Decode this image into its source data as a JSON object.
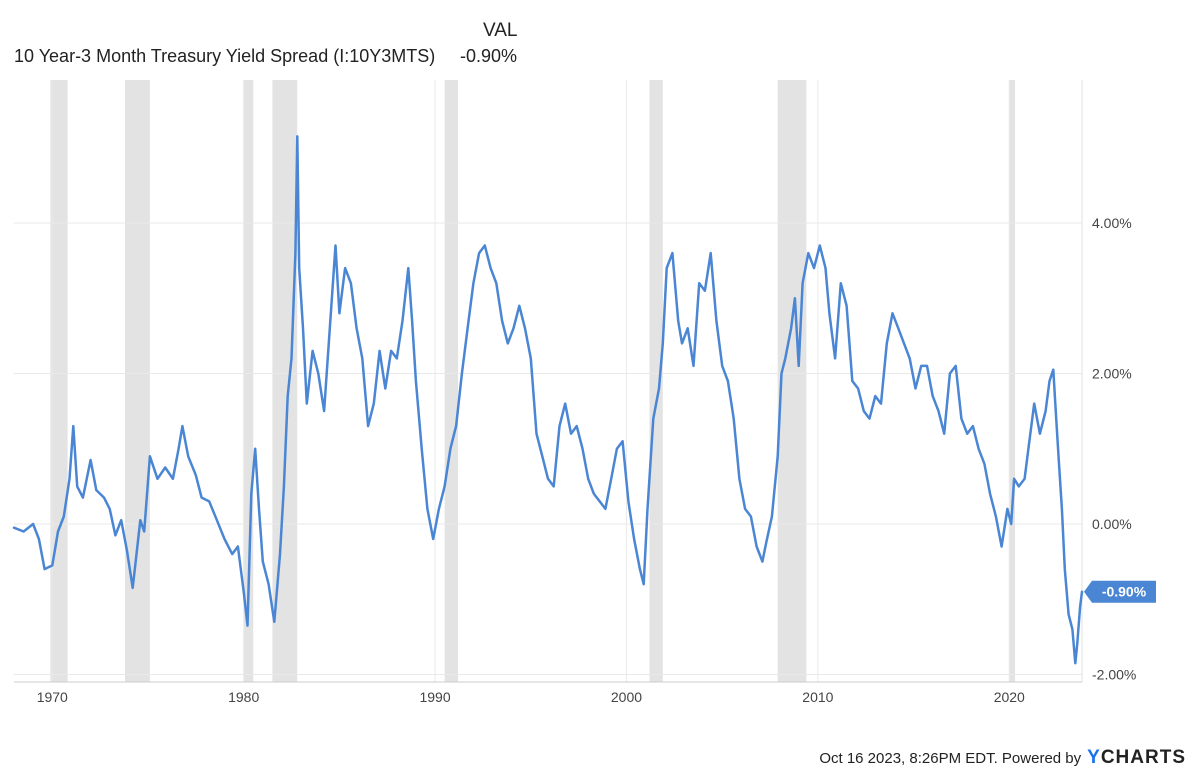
{
  "legend": {
    "header": "VAL",
    "series_name": "10 Year-3 Month Treasury Yield Spread (I:10Y3MTS)",
    "series_value": "-0.90%"
  },
  "footer": {
    "text": "Oct 16 2023, 8:26PM EDT. Powered by",
    "brand_y": "Y",
    "brand_rest": "CHARTS"
  },
  "colors": {
    "line": "#4a86d4",
    "recession": "#e3e3e3",
    "grid": "#e9e9e9",
    "last_label_bg": "#4a86d4"
  },
  "chart_data": {
    "type": "line",
    "title": "10 Year-3 Month Treasury Yield Spread (I:10Y3MTS)",
    "xlabel": "",
    "ylabel": "",
    "x_range": [
      1968.0,
      2023.8
    ],
    "ylim": [
      -2.1,
      5.9
    ],
    "x_ticks": [
      1970,
      1980,
      1990,
      2000,
      2010,
      2020
    ],
    "x_tick_labels": [
      "1970",
      "1980",
      "1990",
      "2000",
      "2010",
      "2020"
    ],
    "y_ticks": [
      4,
      2,
      0,
      -2
    ],
    "y_tick_labels": [
      "4.00%",
      "2.00%",
      "0.00%",
      "-2.00%"
    ],
    "grid": true,
    "last_value": -0.9,
    "last_value_label": "-0.90%",
    "recessions": [
      [
        1969.9,
        1970.8
      ],
      [
        1973.8,
        1975.1
      ],
      [
        1980.0,
        1980.5
      ],
      [
        1981.5,
        1982.8
      ],
      [
        1990.5,
        1991.2
      ],
      [
        2001.2,
        2001.9
      ],
      [
        2007.9,
        2009.4
      ],
      [
        2020.0,
        2020.3
      ]
    ],
    "series": [
      {
        "name": "10 Year-3 Month Treasury Yield Spread (I:10Y3MTS)",
        "points": [
          [
            1968.0,
            -0.05
          ],
          [
            1968.5,
            -0.1
          ],
          [
            1969.0,
            0.0
          ],
          [
            1969.3,
            -0.2
          ],
          [
            1969.6,
            -0.6
          ],
          [
            1970.0,
            -0.55
          ],
          [
            1970.3,
            -0.1
          ],
          [
            1970.6,
            0.1
          ],
          [
            1970.9,
            0.6
          ],
          [
            1971.1,
            1.3
          ],
          [
            1971.3,
            0.5
          ],
          [
            1971.6,
            0.35
          ],
          [
            1972.0,
            0.85
          ],
          [
            1972.3,
            0.45
          ],
          [
            1972.7,
            0.35
          ],
          [
            1973.0,
            0.2
          ],
          [
            1973.3,
            -0.15
          ],
          [
            1973.6,
            0.05
          ],
          [
            1973.9,
            -0.35
          ],
          [
            1974.2,
            -0.85
          ],
          [
            1974.4,
            -0.4
          ],
          [
            1974.6,
            0.05
          ],
          [
            1974.8,
            -0.1
          ],
          [
            1975.1,
            0.9
          ],
          [
            1975.5,
            0.6
          ],
          [
            1975.9,
            0.75
          ],
          [
            1976.3,
            0.6
          ],
          [
            1976.6,
            1.0
          ],
          [
            1976.8,
            1.3
          ],
          [
            1977.1,
            0.9
          ],
          [
            1977.5,
            0.65
          ],
          [
            1977.8,
            0.35
          ],
          [
            1978.2,
            0.3
          ],
          [
            1978.6,
            0.05
          ],
          [
            1979.0,
            -0.2
          ],
          [
            1979.4,
            -0.4
          ],
          [
            1979.7,
            -0.3
          ],
          [
            1980.0,
            -0.9
          ],
          [
            1980.2,
            -1.35
          ],
          [
            1980.4,
            0.4
          ],
          [
            1980.6,
            1.0
          ],
          [
            1980.8,
            0.2
          ],
          [
            1981.0,
            -0.5
          ],
          [
            1981.3,
            -0.8
          ],
          [
            1981.6,
            -1.3
          ],
          [
            1981.9,
            -0.4
          ],
          [
            1982.1,
            0.5
          ],
          [
            1982.3,
            1.7
          ],
          [
            1982.5,
            2.2
          ],
          [
            1982.7,
            3.6
          ],
          [
            1982.8,
            5.15
          ],
          [
            1982.9,
            3.4
          ],
          [
            1983.1,
            2.6
          ],
          [
            1983.3,
            1.6
          ],
          [
            1983.6,
            2.3
          ],
          [
            1983.9,
            2.0
          ],
          [
            1984.2,
            1.5
          ],
          [
            1984.5,
            2.6
          ],
          [
            1984.8,
            3.7
          ],
          [
            1985.0,
            2.8
          ],
          [
            1985.3,
            3.4
          ],
          [
            1985.6,
            3.2
          ],
          [
            1985.9,
            2.6
          ],
          [
            1986.2,
            2.2
          ],
          [
            1986.5,
            1.3
          ],
          [
            1986.8,
            1.6
          ],
          [
            1987.1,
            2.3
          ],
          [
            1987.4,
            1.8
          ],
          [
            1987.7,
            2.3
          ],
          [
            1988.0,
            2.2
          ],
          [
            1988.3,
            2.7
          ],
          [
            1988.6,
            3.4
          ],
          [
            1988.8,
            2.7
          ],
          [
            1989.0,
            1.9
          ],
          [
            1989.3,
            1.0
          ],
          [
            1989.6,
            0.2
          ],
          [
            1989.9,
            -0.2
          ],
          [
            1990.2,
            0.2
          ],
          [
            1990.5,
            0.5
          ],
          [
            1990.8,
            1.0
          ],
          [
            1991.1,
            1.3
          ],
          [
            1991.4,
            2.0
          ],
          [
            1991.7,
            2.6
          ],
          [
            1992.0,
            3.2
          ],
          [
            1992.3,
            3.6
          ],
          [
            1992.6,
            3.7
          ],
          [
            1992.9,
            3.4
          ],
          [
            1993.2,
            3.2
          ],
          [
            1993.5,
            2.7
          ],
          [
            1993.8,
            2.4
          ],
          [
            1994.1,
            2.6
          ],
          [
            1994.4,
            2.9
          ],
          [
            1994.7,
            2.6
          ],
          [
            1995.0,
            2.2
          ],
          [
            1995.3,
            1.2
          ],
          [
            1995.6,
            0.9
          ],
          [
            1995.9,
            0.6
          ],
          [
            1996.2,
            0.5
          ],
          [
            1996.5,
            1.3
          ],
          [
            1996.8,
            1.6
          ],
          [
            1997.1,
            1.2
          ],
          [
            1997.4,
            1.3
          ],
          [
            1997.7,
            1.0
          ],
          [
            1998.0,
            0.6
          ],
          [
            1998.3,
            0.4
          ],
          [
            1998.6,
            0.3
          ],
          [
            1998.9,
            0.2
          ],
          [
            1999.2,
            0.6
          ],
          [
            1999.5,
            1.0
          ],
          [
            1999.8,
            1.1
          ],
          [
            2000.1,
            0.3
          ],
          [
            2000.4,
            -0.2
          ],
          [
            2000.7,
            -0.6
          ],
          [
            2000.9,
            -0.8
          ],
          [
            2001.1,
            0.2
          ],
          [
            2001.4,
            1.4
          ],
          [
            2001.7,
            1.8
          ],
          [
            2001.9,
            2.4
          ],
          [
            2002.1,
            3.4
          ],
          [
            2002.4,
            3.6
          ],
          [
            2002.7,
            2.7
          ],
          [
            2002.9,
            2.4
          ],
          [
            2003.2,
            2.6
          ],
          [
            2003.5,
            2.1
          ],
          [
            2003.8,
            3.2
          ],
          [
            2004.1,
            3.1
          ],
          [
            2004.4,
            3.6
          ],
          [
            2004.7,
            2.7
          ],
          [
            2005.0,
            2.1
          ],
          [
            2005.3,
            1.9
          ],
          [
            2005.6,
            1.4
          ],
          [
            2005.9,
            0.6
          ],
          [
            2006.2,
            0.2
          ],
          [
            2006.5,
            0.1
          ],
          [
            2006.8,
            -0.3
          ],
          [
            2007.1,
            -0.5
          ],
          [
            2007.3,
            -0.25
          ],
          [
            2007.6,
            0.1
          ],
          [
            2007.9,
            0.9
          ],
          [
            2008.1,
            2.0
          ],
          [
            2008.3,
            2.2
          ],
          [
            2008.6,
            2.6
          ],
          [
            2008.8,
            3.0
          ],
          [
            2009.0,
            2.1
          ],
          [
            2009.2,
            3.2
          ],
          [
            2009.5,
            3.6
          ],
          [
            2009.8,
            3.4
          ],
          [
            2010.1,
            3.7
          ],
          [
            2010.4,
            3.4
          ],
          [
            2010.6,
            2.8
          ],
          [
            2010.9,
            2.2
          ],
          [
            2011.2,
            3.2
          ],
          [
            2011.5,
            2.9
          ],
          [
            2011.8,
            1.9
          ],
          [
            2012.1,
            1.8
          ],
          [
            2012.4,
            1.5
          ],
          [
            2012.7,
            1.4
          ],
          [
            2013.0,
            1.7
          ],
          [
            2013.3,
            1.6
          ],
          [
            2013.6,
            2.4
          ],
          [
            2013.9,
            2.8
          ],
          [
            2014.2,
            2.6
          ],
          [
            2014.5,
            2.4
          ],
          [
            2014.8,
            2.2
          ],
          [
            2015.1,
            1.8
          ],
          [
            2015.4,
            2.1
          ],
          [
            2015.7,
            2.1
          ],
          [
            2016.0,
            1.7
          ],
          [
            2016.3,
            1.5
          ],
          [
            2016.6,
            1.2
          ],
          [
            2016.9,
            2.0
          ],
          [
            2017.2,
            2.1
          ],
          [
            2017.5,
            1.4
          ],
          [
            2017.8,
            1.2
          ],
          [
            2018.1,
            1.3
          ],
          [
            2018.4,
            1.0
          ],
          [
            2018.7,
            0.8
          ],
          [
            2019.0,
            0.4
          ],
          [
            2019.3,
            0.1
          ],
          [
            2019.6,
            -0.3
          ],
          [
            2019.9,
            0.2
          ],
          [
            2020.1,
            0.0
          ],
          [
            2020.25,
            0.6
          ],
          [
            2020.5,
            0.5
          ],
          [
            2020.8,
            0.6
          ],
          [
            2021.0,
            1.0
          ],
          [
            2021.3,
            1.6
          ],
          [
            2021.6,
            1.2
          ],
          [
            2021.9,
            1.5
          ],
          [
            2022.1,
            1.9
          ],
          [
            2022.3,
            2.05
          ],
          [
            2022.45,
            1.4
          ],
          [
            2022.6,
            0.8
          ],
          [
            2022.75,
            0.2
          ],
          [
            2022.9,
            -0.6
          ],
          [
            2023.1,
            -1.2
          ],
          [
            2023.3,
            -1.4
          ],
          [
            2023.45,
            -1.85
          ],
          [
            2023.55,
            -1.6
          ],
          [
            2023.7,
            -1.1
          ],
          [
            2023.8,
            -0.9
          ]
        ]
      }
    ]
  }
}
